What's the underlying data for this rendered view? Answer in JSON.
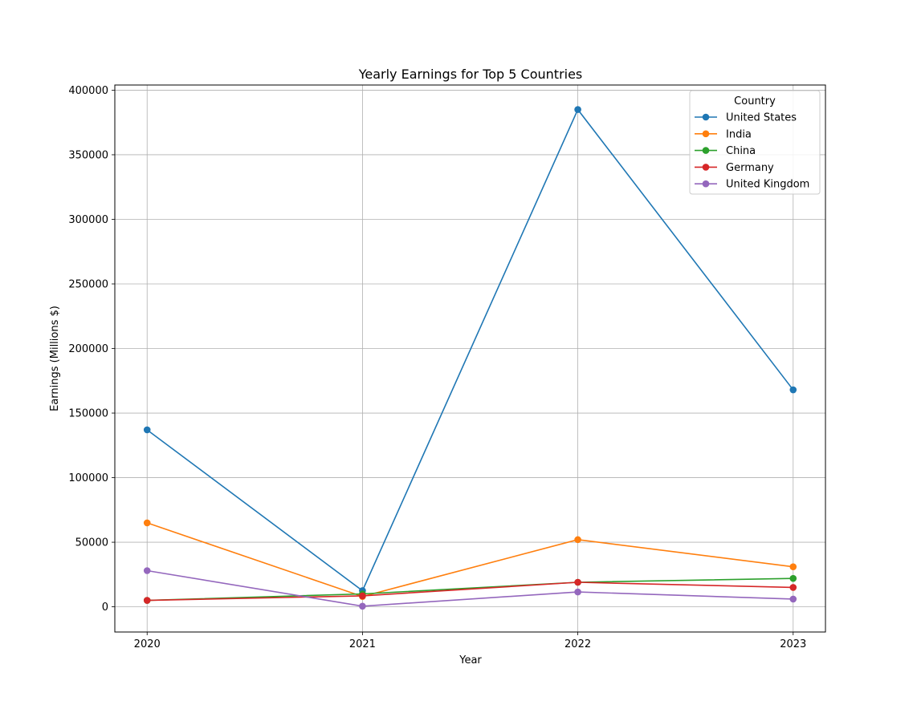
{
  "chart_data": {
    "type": "line",
    "title": "Yearly Earnings for Top 5 Countries",
    "xlabel": "Year",
    "ylabel": "Earnings (Millions $)",
    "x": [
      2020,
      2021,
      2022,
      2023
    ],
    "xlim": [
      2019.85,
      2023.15
    ],
    "ylim": [
      -19500,
      404000
    ],
    "yticks": [
      0,
      50000,
      100000,
      150000,
      200000,
      250000,
      300000,
      350000,
      400000
    ],
    "grid": true,
    "legend": {
      "title": "Country",
      "placement": "top-right"
    },
    "series": [
      {
        "name": "United States",
        "color": "#1f77b4",
        "values": [
          137000,
          12500,
          385000,
          168000
        ]
      },
      {
        "name": "India",
        "color": "#ff7f0e",
        "values": [
          65000,
          8000,
          52000,
          31000
        ]
      },
      {
        "name": "China",
        "color": "#2ca02c",
        "values": [
          5000,
          10000,
          19000,
          22000
        ]
      },
      {
        "name": "Germany",
        "color": "#d62728",
        "values": [
          5000,
          8500,
          19000,
          15000
        ]
      },
      {
        "name": "United Kingdom",
        "color": "#9467bd",
        "values": [
          28000,
          500,
          11500,
          6000
        ]
      }
    ]
  }
}
